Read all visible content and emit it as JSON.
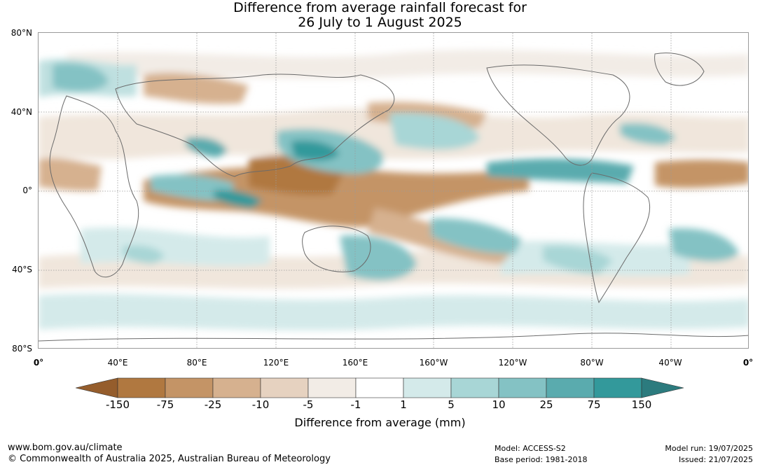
{
  "title_line1": "Difference from average rainfall forecast for",
  "title_line2": "26 July to 1 August 2025",
  "lat_labels": [
    "80°N",
    "40°N",
    "0°",
    "40°S",
    "80°S"
  ],
  "lon_labels": [
    "0°",
    "40°E",
    "80°E",
    "120°E",
    "160°E",
    "160°W",
    "120°W",
    "80°W",
    "40°W",
    "0°"
  ],
  "colorbar": {
    "label": "Difference from average (mm)",
    "ticks": [
      "-150",
      "-75",
      "-25",
      "-10",
      "-5",
      "-1",
      "1",
      "5",
      "10",
      "25",
      "75",
      "150"
    ],
    "colors": [
      "#955d2c",
      "#b07840",
      "#c49466",
      "#d6b18f",
      "#e6d2c0",
      "#f2ece6",
      "#ffffff",
      "#d4eaea",
      "#a8d6d6",
      "#84c2c4",
      "#5aabae",
      "#33999b",
      "#2c7b7e"
    ]
  },
  "footer": {
    "url": "www.bom.gov.au/climate",
    "copyright": "© Commonwealth of Australia 2025, Australian Bureau of Meteorology",
    "model": "Model: ACCESS-S2",
    "base_period": "Base period: 1981-2018",
    "model_run": "Model run: 19/07/2025",
    "issued": "Issued: 21/07/2025"
  }
}
